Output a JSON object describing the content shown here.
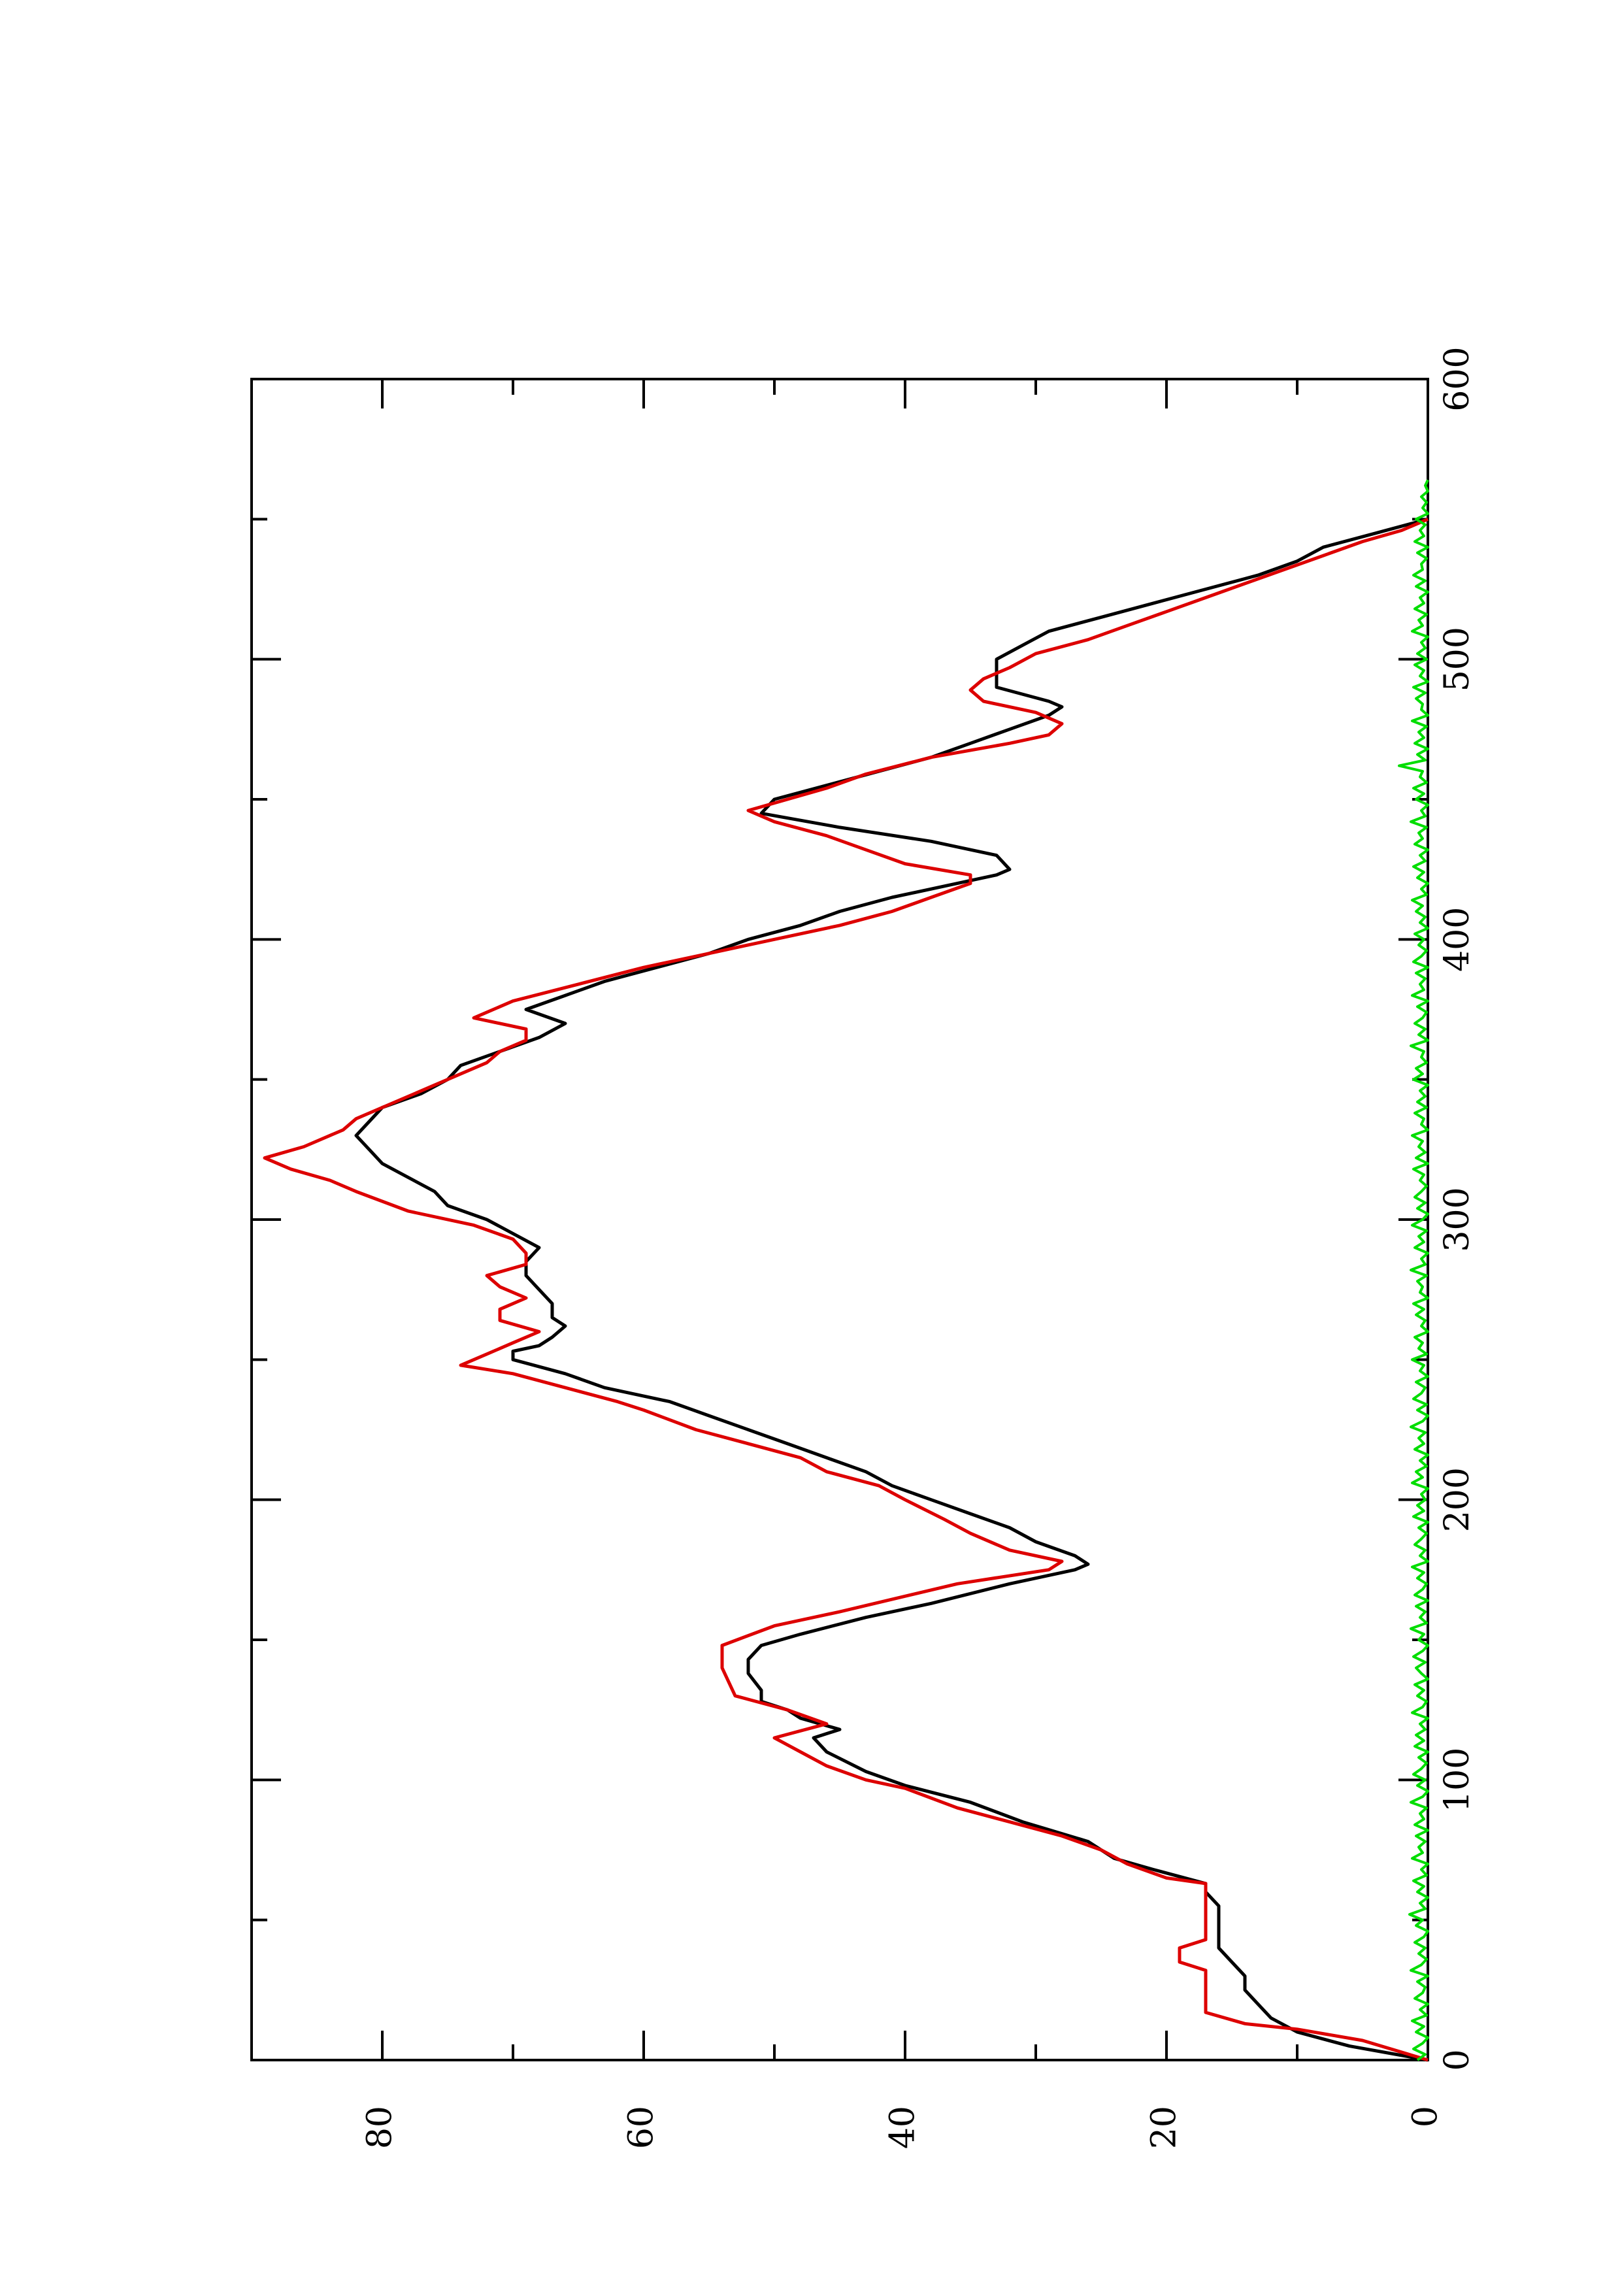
{
  "chart_data": {
    "type": "line",
    "orientation": "rotated-90-clockwise",
    "title": "",
    "xlabel": "",
    "ylabel": "",
    "xlim": [
      0,
      600
    ],
    "ylim": [
      0,
      90
    ],
    "x_ticks": [
      0,
      100,
      200,
      300,
      400,
      500,
      600
    ],
    "x_tick_labels": [
      "0",
      "100",
      "200",
      "300",
      "400",
      "500",
      "600"
    ],
    "x_minor_ticks": [
      50,
      150,
      250,
      350,
      450,
      550
    ],
    "y_ticks": [
      0,
      20,
      40,
      60,
      80
    ],
    "y_tick_labels": [
      "0",
      "20",
      "40",
      "60",
      "80"
    ],
    "y_minor_ticks": [
      10,
      30,
      50,
      70
    ],
    "grid": false,
    "legend": "none",
    "series": [
      {
        "color": "#000000",
        "style": "solid",
        "x": [
          0,
          5,
          10,
          15,
          20,
          25,
          30,
          35,
          40,
          45,
          50,
          55,
          60,
          63,
          68,
          72,
          78,
          85,
          92,
          98,
          103,
          110,
          115,
          118,
          122,
          125,
          128,
          132,
          138,
          143,
          148,
          152,
          158,
          163,
          170,
          175,
          177,
          180,
          185,
          190,
          195,
          200,
          205,
          210,
          215,
          220,
          225,
          230,
          235,
          240,
          245,
          250,
          253,
          255,
          258,
          262,
          265,
          270,
          275,
          280,
          285,
          290,
          295,
          300,
          305,
          310,
          315,
          320,
          325,
          330,
          335,
          340,
          345,
          350,
          355,
          360,
          365,
          370,
          375,
          380,
          385,
          390,
          395,
          400,
          405,
          410,
          415,
          420,
          423,
          425,
          430,
          435,
          440,
          445,
          450,
          455,
          460,
          465,
          470,
          475,
          480,
          483,
          485,
          490,
          495,
          500,
          505,
          510,
          515,
          520,
          525,
          530,
          535,
          540,
          545,
          550
        ],
        "values": [
          0,
          6,
          10,
          12,
          13,
          14,
          14,
          15,
          16,
          16,
          16,
          16,
          17,
          17,
          21,
          24,
          26,
          31,
          35,
          40,
          43,
          46,
          47,
          45,
          48,
          49,
          51,
          51,
          52,
          52,
          51,
          48,
          43,
          38,
          32,
          27,
          26,
          27,
          30,
          32,
          35,
          38,
          41,
          43,
          46,
          49,
          52,
          55,
          58,
          63,
          66,
          70,
          70,
          68,
          67,
          66,
          67,
          67,
          68,
          69,
          69,
          68,
          70,
          72,
          75,
          76,
          78,
          80,
          81,
          82,
          81,
          80,
          77,
          75,
          74,
          71,
          68,
          66,
          69,
          66,
          63,
          59,
          55,
          52,
          48,
          45,
          41,
          36,
          33,
          32,
          33,
          38,
          45,
          51,
          50,
          46,
          42,
          38,
          35,
          32,
          29,
          28,
          29,
          33,
          33,
          33,
          31,
          29,
          25,
          21,
          17,
          13,
          10,
          8,
          4,
          0
        ]
      },
      {
        "color": "#dd0000",
        "style": "solid",
        "x": [
          0,
          7,
          11,
          13,
          17,
          24,
          27,
          32,
          35,
          40,
          43,
          50,
          55,
          63,
          65,
          70,
          75,
          80,
          85,
          90,
          97,
          100,
          105,
          110,
          115,
          120,
          125,
          130,
          140,
          148,
          155,
          160,
          170,
          175,
          178,
          182,
          188,
          193,
          200,
          205,
          210,
          215,
          220,
          225,
          232,
          235,
          240,
          245,
          248,
          252,
          256,
          260,
          264,
          268,
          272,
          276,
          280,
          284,
          288,
          293,
          298,
          303,
          310,
          314,
          318,
          322,
          326,
          332,
          336,
          340,
          344,
          348,
          352,
          356,
          360,
          364,
          368,
          372,
          378,
          384,
          390,
          395,
          400,
          405,
          410,
          415,
          420,
          423,
          427,
          432,
          437,
          442,
          446,
          450,
          454,
          459,
          465,
          470,
          473,
          477,
          481,
          485,
          489,
          493,
          497,
          502,
          507,
          512,
          517,
          522,
          527,
          532,
          537,
          542,
          546,
          550
        ],
        "values": [
          0,
          5,
          10,
          14,
          17,
          17,
          17,
          17,
          19,
          19,
          17,
          17,
          17,
          17,
          20,
          23,
          25,
          28,
          32,
          36,
          40,
          43,
          46,
          48,
          50,
          46,
          49,
          53,
          54,
          54,
          50,
          45,
          36,
          29,
          28,
          32,
          35,
          37,
          40,
          42,
          46,
          48,
          52,
          56,
          60,
          62,
          66,
          70,
          74,
          72,
          70,
          68,
          71,
          71,
          69,
          71,
          72,
          69,
          69,
          70,
          73,
          78,
          82,
          84,
          87,
          89,
          86,
          83,
          82,
          80,
          78,
          76,
          74,
          72,
          71,
          69,
          69,
          73,
          70,
          65,
          60,
          55,
          50,
          45,
          41,
          38,
          35,
          35,
          40,
          43,
          46,
          50,
          52,
          49,
          46,
          43,
          38,
          32,
          29,
          28,
          30,
          34,
          35,
          34,
          32,
          30,
          26,
          23,
          20,
          17,
          14,
          11,
          8,
          5,
          2,
          0
        ]
      },
      {
        "color": "#00dd00",
        "style": "solid",
        "noise_amplitude": 1.2,
        "x_start": 0,
        "x_end": 550,
        "x_step": 2,
        "values": [
          0.8,
          0.2,
          1.1,
          0.4,
          0.0,
          0.9,
          0.3,
          1.2,
          0.1,
          0.6,
          0.0,
          1.0,
          0.4,
          0.2,
          0.8,
          0.0,
          1.3,
          0.5,
          0.1,
          0.7,
          0.2,
          1.0,
          0.3,
          0.0,
          0.9,
          0.4,
          1.4,
          0.2,
          0.6,
          0.0,
          0.8,
          0.3,
          1.1,
          0.1,
          0.5,
          0.0,
          1.2,
          0.4,
          0.7,
          0.2,
          0.9,
          0.0,
          1.0,
          0.3,
          0.6,
          0.1,
          1.3,
          0.4,
          0.0,
          0.8,
          0.2,
          1.1,
          0.5,
          0.1,
          0.7,
          0.0,
          1.0,
          0.3,
          0.9,
          0.2,
          0.6,
          0.0,
          1.2,
          0.4,
          0.1,
          0.8,
          0.3,
          1.0,
          0.0,
          0.5,
          0.9,
          0.2,
          1.1,
          0.4,
          0.0,
          0.7,
          0.3,
          1.3,
          0.1,
          0.6,
          0.2,
          0.9,
          0.0,
          1.0,
          0.4,
          0.1,
          0.8,
          0.3,
          1.2,
          0.0,
          0.6,
          0.2,
          1.0,
          0.5,
          0.1,
          0.7,
          0.0,
          1.1,
          0.3,
          0.8,
          0.2,
          0.5,
          0.0,
          1.2,
          0.4,
          0.9,
          0.1,
          0.6,
          0.0,
          1.0,
          0.3,
          0.7,
          0.2,
          1.3,
          0.4,
          0.0,
          0.8,
          0.1,
          1.1,
          0.5,
          0.2,
          0.9,
          0.0,
          0.6,
          0.3,
          1.2,
          0.1,
          0.7,
          0.4,
          1.0,
          0.0,
          0.5,
          0.2,
          0.9,
          0.3,
          1.1,
          0.0,
          0.6,
          0.4,
          0.8,
          0.1,
          1.3,
          0.2,
          0.5,
          0.0,
          1.0,
          0.3,
          0.7,
          0.1,
          1.2,
          0.4,
          0.0,
          0.8,
          0.2,
          1.0,
          0.5,
          0.1,
          0.6,
          0.3,
          1.1,
          0.0,
          0.9,
          0.2,
          0.7,
          0.4,
          1.2,
          0.0,
          0.5,
          0.3,
          1.0,
          0.1,
          0.8,
          0.2,
          0.6,
          0.0,
          1.1,
          0.4,
          0.9,
          0.1,
          0.5,
          0.3,
          1.3,
          0.0,
          0.7,
          0.2,
          1.0,
          0.4,
          0.1,
          0.8,
          0.0,
          1.2,
          0.3,
          0.6,
          0.2,
          0.9,
          0.0,
          1.1,
          0.5,
          0.1,
          0.7,
          0.3,
          1.0,
          0.0,
          0.6,
          0.2,
          0.9,
          0.4,
          1.2,
          0.1,
          0.5,
          0.0,
          0.8,
          0.3,
          1.1,
          0.2,
          0.6,
          0.0,
          1.0,
          0.4,
          0.7,
          0.1,
          1.3,
          0.2,
          0.5,
          0.0,
          0.9,
          0.3,
          1.1,
          0.1,
          0.6,
          0.4,
          2.2,
          0.2,
          0.8,
          0.0,
          1.0,
          0.3,
          0.7,
          0.1,
          1.2,
          0.0,
          0.5,
          0.4,
          0.9,
          0.2,
          1.1,
          0.0,
          0.6,
          0.3,
          1.0,
          0.1,
          0.8,
          0.2,
          0.5,
          0.0,
          1.2,
          0.4,
          0.7,
          0.1,
          1.0,
          0.3,
          0.6,
          0.0,
          0.9,
          0.2,
          1.1,
          0.4,
          0.5,
          0.1,
          0.8,
          0.0,
          1.0,
          0.3,
          0.6,
          0.2,
          0.9,
          0.0,
          0.4,
          0.1,
          0.5,
          0.0,
          0.2,
          0.0
        ]
      }
    ]
  }
}
